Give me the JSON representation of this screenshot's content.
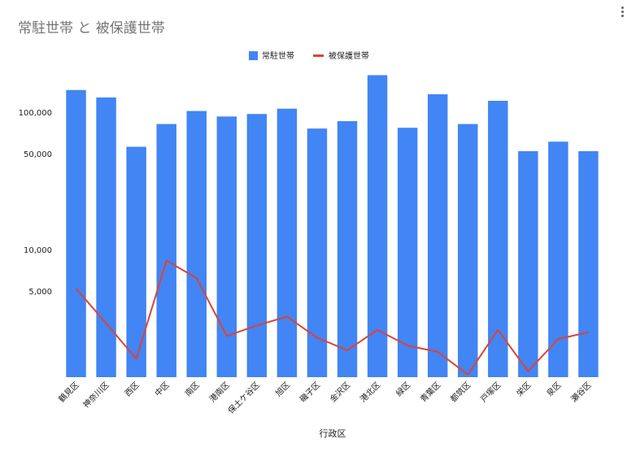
{
  "chart_data": {
    "type": "bar",
    "title": "常駐世帯 と 被保護世帯",
    "xlabel": "行政区",
    "ylabel": "",
    "y_scale": "log",
    "ylim": [
      1200,
      220000
    ],
    "y_ticks": [
      5000,
      10000,
      50000,
      100000
    ],
    "y_tick_labels": [
      "5,000",
      "10,000",
      "50,000",
      "100,000"
    ],
    "grid": false,
    "legend_position": "top",
    "categories": [
      "鶴見区",
      "神奈川区",
      "西区",
      "中区",
      "南区",
      "港南区",
      "保土ケ谷区",
      "旭区",
      "磯子区",
      "金沢区",
      "港北区",
      "緑区",
      "青葉区",
      "都筑区",
      "戸塚区",
      "栄区",
      "泉区",
      "瀬谷区"
    ],
    "series": [
      {
        "name": "常駐世帯",
        "kind": "bar",
        "color": "#4285f4",
        "values": [
          145000,
          128000,
          56000,
          82000,
          102000,
          93000,
          97000,
          106000,
          76000,
          86000,
          186000,
          77000,
          135000,
          82000,
          121000,
          52000,
          61000,
          52000
        ]
      },
      {
        "name": "被保護世帯",
        "kind": "line",
        "color": "#db4437",
        "values": [
          5200,
          2900,
          1600,
          8300,
          6200,
          2350,
          2800,
          3250,
          2280,
          1850,
          2600,
          2000,
          1800,
          1230,
          2600,
          1300,
          2230,
          2500
        ]
      }
    ]
  },
  "menu_icon": "more-vert-icon"
}
